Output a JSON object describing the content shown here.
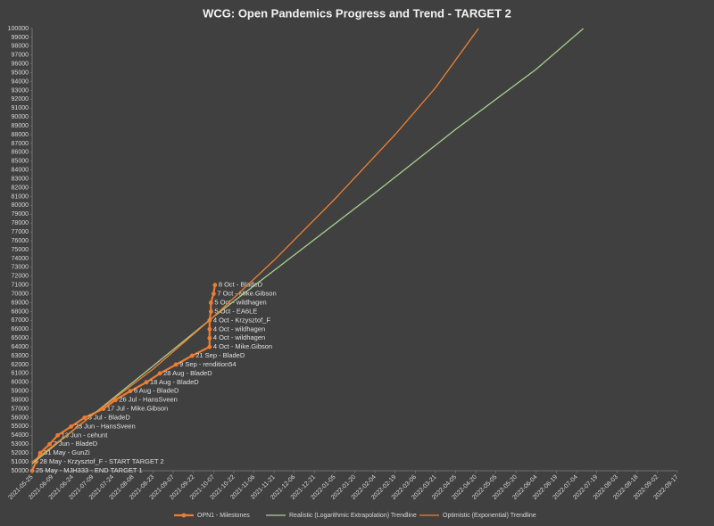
{
  "chart_data": {
    "type": "line",
    "title": "WCG: Open Pandemics Progress and Trend - TARGET 2",
    "xlim": [
      "2021-05-25",
      "2022-09-17"
    ],
    "xticks": [
      "2021-05-25",
      "2021-06-09",
      "2021-06-24",
      "2021-07-09",
      "2021-07-24",
      "2021-08-08",
      "2021-08-23",
      "2021-09-07",
      "2021-09-22",
      "2021-10-07",
      "2021-10-22",
      "2021-11-06",
      "2021-11-21",
      "2021-12-06",
      "2021-12-21",
      "2022-01-05",
      "2022-01-20",
      "2022-02-04",
      "2022-02-19",
      "2022-03-06",
      "2022-03-21",
      "2022-04-05",
      "2022-04-20",
      "2022-05-05",
      "2022-05-20",
      "2022-06-04",
      "2022-06-19",
      "2022-07-04",
      "2022-07-19",
      "2022-08-03",
      "2022-08-18",
      "2022-09-02",
      "2022-09-17"
    ],
    "ylim": [
      50000,
      100000
    ],
    "yticks": [
      50000,
      51000,
      52000,
      53000,
      54000,
      55000,
      56000,
      57000,
      58000,
      59000,
      60000,
      61000,
      62000,
      63000,
      64000,
      65000,
      66000,
      67000,
      68000,
      69000,
      70000,
      71000,
      72000,
      73000,
      74000,
      75000,
      76000,
      77000,
      78000,
      79000,
      80000,
      81000,
      82000,
      83000,
      84000,
      85000,
      86000,
      87000,
      88000,
      89000,
      90000,
      91000,
      92000,
      93000,
      94000,
      95000,
      96000,
      97000,
      98000,
      99000,
      100000
    ],
    "grid": false,
    "legend": "bottom",
    "series": [
      {
        "name": "OPN1 - Milestones",
        "color": "#ed7d31",
        "markers": true,
        "x": [
          "2021-05-25",
          "2021-05-28",
          "2021-05-31",
          "2021-06-07",
          "2021-06-13",
          "2021-06-23",
          "2021-07-03",
          "2021-07-17",
          "2021-07-26",
          "2021-08-06",
          "2021-08-18",
          "2021-08-28",
          "2021-09-09",
          "2021-09-21",
          "2021-10-04",
          "2021-10-04",
          "2021-10-04",
          "2021-10-04",
          "2021-10-05",
          "2021-10-05",
          "2021-10-07",
          "2021-10-08"
        ],
        "values": [
          50000,
          51000,
          52000,
          53000,
          54000,
          55000,
          56000,
          57000,
          58000,
          59000,
          60000,
          61000,
          62000,
          63000,
          64000,
          65000,
          66000,
          67000,
          68000,
          69000,
          70000,
          71000
        ],
        "point_labels": [
          "25 May - MJH333 - END TARGET 1",
          "28 May - Krzysztof_F - START TARGET 2",
          "31 May - GunZi",
          "7 Jun - BladeD",
          "13 Jun - cehunt",
          "23 Jun - HansSveen",
          "3 Jul - BladeD",
          "17 Jul - Mike.Gibson",
          "26 Jul - HansSveen",
          "6 Aug - BladeD",
          "18 Aug - BladeD",
          "28 Aug - BladeD",
          "9 Sep - rendition54",
          "21 Sep - BladeD",
          "4 Oct - Mike.Gibson",
          "4 Oct - wildhagen",
          "4 Oct - wildhagen",
          "4 Oct - Krzysztof_F",
          "5 Oct - EA6LE",
          "5 Oct - wildhagen",
          "7 Oct - Mike.Gibson",
          "8 Oct - BladeD"
        ]
      },
      {
        "name": "Realistic (Logarithmic Extrapolation) Trendline",
        "color": "#a9d18e",
        "markers": false,
        "x": [
          "2021-05-25",
          "2021-06-24",
          "2021-08-08",
          "2021-10-07",
          "2021-12-06",
          "2022-02-04",
          "2022-04-05",
          "2022-06-04",
          "2022-07-09"
        ],
        "values": [
          50800,
          54500,
          60000,
          67400,
          74400,
          81400,
          88600,
          95400,
          100000
        ]
      },
      {
        "name": "Optimistic (Exponential) Trendline",
        "color": "#f08030",
        "markers": false,
        "x": [
          "2021-05-25",
          "2021-07-09",
          "2021-08-23",
          "2021-10-07",
          "2021-11-21",
          "2022-01-05",
          "2022-02-19",
          "2022-03-21",
          "2022-04-22"
        ],
        "values": [
          51000,
          56300,
          61500,
          67400,
          73800,
          80700,
          88000,
          93300,
          100000
        ]
      }
    ]
  }
}
